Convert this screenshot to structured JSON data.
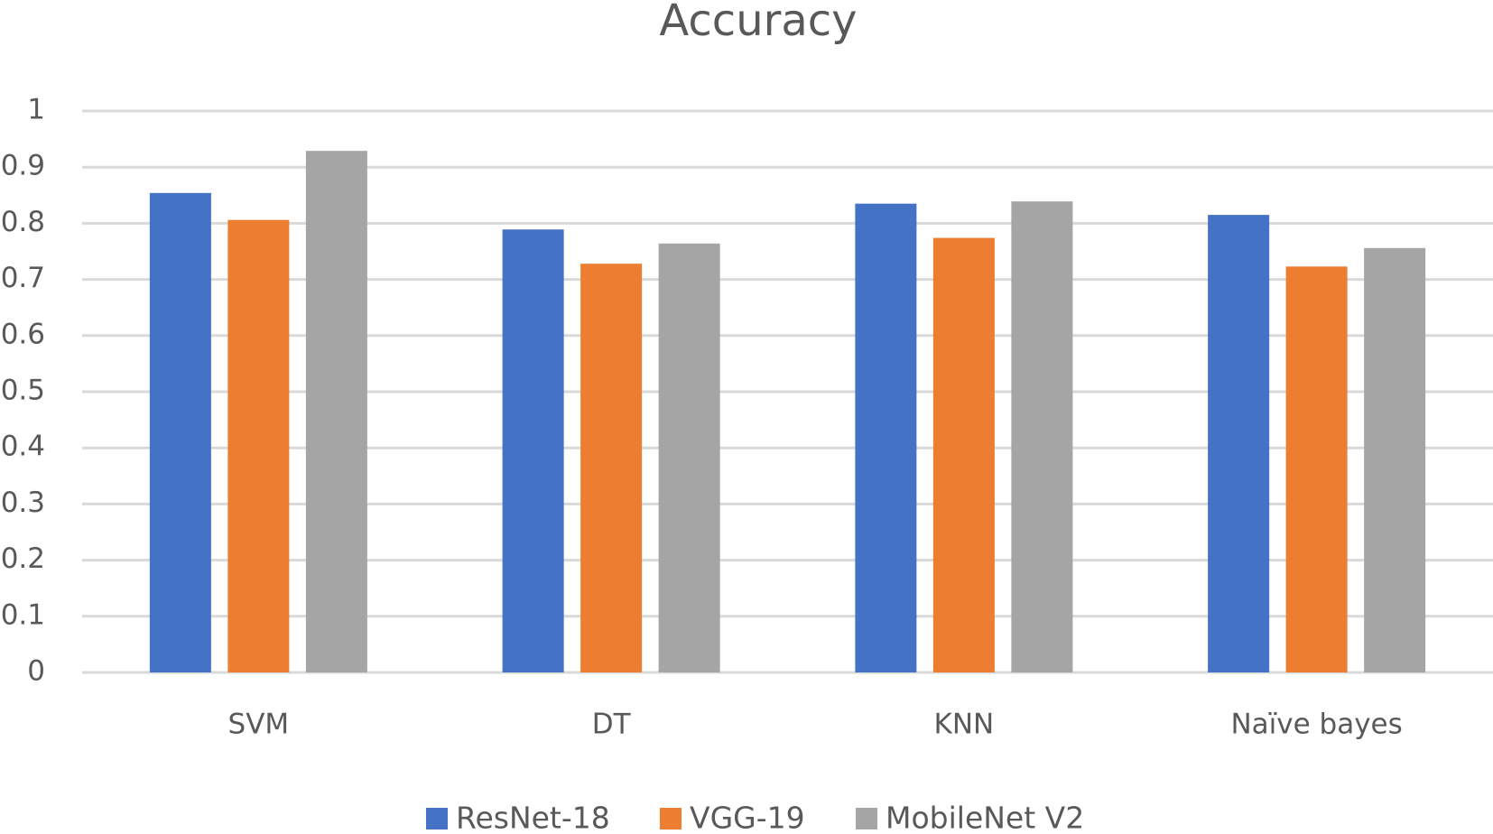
{
  "chart_data": {
    "type": "bar",
    "title": "Accuracy",
    "categories": [
      "SVM",
      "DT",
      "KNN",
      "Naïve bayes"
    ],
    "series": [
      {
        "name": "ResNet-18",
        "color": "#4472c4",
        "values": [
          0.854,
          0.789,
          0.835,
          0.815
        ]
      },
      {
        "name": "VGG-19",
        "color": "#ed7d31",
        "values": [
          0.806,
          0.728,
          0.774,
          0.723
        ]
      },
      {
        "name": "MobileNet V2",
        "color": "#a5a5a5",
        "values": [
          0.929,
          0.764,
          0.839,
          0.756
        ]
      }
    ],
    "ylim": [
      0,
      1
    ],
    "yticks": [
      0,
      0.1,
      0.2,
      0.3,
      0.4,
      0.5,
      0.6,
      0.7,
      0.8,
      0.9,
      1
    ],
    "grid": true,
    "legend": "bottom"
  }
}
